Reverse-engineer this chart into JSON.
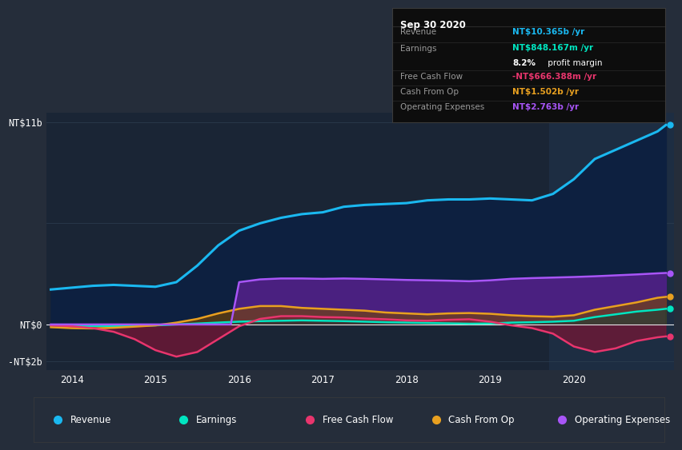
{
  "bg_color": "#252d3a",
  "plot_bg_color": "#1a2535",
  "grid_color": "#2e3f52",
  "highlight_bg": "#1e2c3f",
  "title": "Sep 30 2020",
  "ylabel_top": "NT$11b",
  "ylabel_zero": "NT$0",
  "ylabel_neg": "-NT$2b",
  "xlim": [
    2013.7,
    2021.2
  ],
  "ylim": [
    -2500000000.0,
    11500000000.0
  ],
  "info_box": {
    "date": "Sep 30 2020",
    "revenue_label": "Revenue",
    "revenue_value": "NT$10.365b /yr",
    "revenue_color": "#1ab8f0",
    "earnings_label": "Earnings",
    "earnings_value": "NT$848.167m /yr",
    "earnings_color": "#00e5c0",
    "profit_margin": "8.2%",
    "profit_label": " profit margin",
    "profit_color": "#ffffff",
    "fcf_label": "Free Cash Flow",
    "fcf_value": "-NT$666.388m /yr",
    "fcf_color": "#e8356d",
    "cashop_label": "Cash From Op",
    "cashop_value": "NT$1.502b /yr",
    "cashop_color": "#e8a020",
    "opex_label": "Operating Expenses",
    "opex_value": "NT$2.763b /yr",
    "opex_color": "#a855f7"
  },
  "revenue_x": [
    2013.75,
    2014.0,
    2014.25,
    2014.5,
    2014.75,
    2015.0,
    2015.25,
    2015.5,
    2015.75,
    2016.0,
    2016.25,
    2016.5,
    2016.75,
    2017.0,
    2017.25,
    2017.5,
    2017.75,
    2018.0,
    2018.25,
    2018.5,
    2018.75,
    2019.0,
    2019.25,
    2019.5,
    2019.75,
    2020.0,
    2020.25,
    2020.5,
    2020.75,
    2021.0,
    2021.1
  ],
  "revenue_y": [
    1900000000.0,
    2000000000.0,
    2100000000.0,
    2150000000.0,
    2100000000.0,
    2050000000.0,
    2300000000.0,
    3200000000.0,
    4300000000.0,
    5100000000.0,
    5500000000.0,
    5800000000.0,
    6000000000.0,
    6100000000.0,
    6400000000.0,
    6500000000.0,
    6550000000.0,
    6600000000.0,
    6750000000.0,
    6800000000.0,
    6800000000.0,
    6850000000.0,
    6800000000.0,
    6750000000.0,
    7100000000.0,
    7900000000.0,
    9000000000.0,
    9500000000.0,
    10000000000.0,
    10500000000.0,
    10850000000.0
  ],
  "revenue_color": "#1ab8f0",
  "revenue_lw": 2.2,
  "earnings_x": [
    2013.75,
    2014.0,
    2014.25,
    2014.5,
    2014.75,
    2015.0,
    2015.25,
    2015.5,
    2015.75,
    2016.0,
    2016.25,
    2016.5,
    2016.75,
    2017.0,
    2017.25,
    2017.5,
    2017.75,
    2018.0,
    2018.25,
    2018.5,
    2018.75,
    2019.0,
    2019.25,
    2019.5,
    2019.75,
    2020.0,
    2020.25,
    2020.5,
    2020.75,
    2021.0,
    2021.1
  ],
  "earnings_y": [
    -50000000.0,
    -80000000.0,
    -90000000.0,
    -100000000.0,
    -80000000.0,
    -50000000.0,
    0.0,
    50000000.0,
    100000000.0,
    150000000.0,
    180000000.0,
    200000000.0,
    220000000.0,
    200000000.0,
    180000000.0,
    150000000.0,
    120000000.0,
    100000000.0,
    80000000.0,
    60000000.0,
    40000000.0,
    50000000.0,
    100000000.0,
    120000000.0,
    150000000.0,
    200000000.0,
    400000000.0,
    550000000.0,
    700000000.0,
    800000000.0,
    850000000.0
  ],
  "earnings_color": "#00e5c0",
  "earnings_lw": 1.8,
  "fcf_x": [
    2013.75,
    2014.0,
    2014.25,
    2014.5,
    2014.75,
    2015.0,
    2015.25,
    2015.5,
    2015.75,
    2016.0,
    2016.25,
    2016.5,
    2016.75,
    2017.0,
    2017.25,
    2017.5,
    2017.75,
    2018.0,
    2018.25,
    2018.5,
    2018.75,
    2019.0,
    2019.25,
    2019.5,
    2019.75,
    2020.0,
    2020.25,
    2020.5,
    2020.75,
    2021.0,
    2021.1
  ],
  "fcf_y": [
    -50000000.0,
    -100000000.0,
    -200000000.0,
    -400000000.0,
    -800000000.0,
    -1400000000.0,
    -1750000000.0,
    -1500000000.0,
    -800000000.0,
    -100000000.0,
    300000000.0,
    450000000.0,
    450000000.0,
    400000000.0,
    380000000.0,
    320000000.0,
    280000000.0,
    220000000.0,
    200000000.0,
    250000000.0,
    280000000.0,
    150000000.0,
    -50000000.0,
    -200000000.0,
    -500000000.0,
    -1200000000.0,
    -1500000000.0,
    -1300000000.0,
    -900000000.0,
    -700000000.0,
    -650000000.0
  ],
  "fcf_color": "#e8356d",
  "fcf_lw": 1.8,
  "cashop_x": [
    2013.75,
    2014.0,
    2014.25,
    2014.5,
    2014.75,
    2015.0,
    2015.25,
    2015.5,
    2015.75,
    2016.0,
    2016.25,
    2016.5,
    2016.75,
    2017.0,
    2017.25,
    2017.5,
    2017.75,
    2018.0,
    2018.25,
    2018.5,
    2018.75,
    2019.0,
    2019.25,
    2019.5,
    2019.75,
    2020.0,
    2020.25,
    2020.5,
    2020.75,
    2021.0,
    2021.1
  ],
  "cashop_y": [
    -150000000.0,
    -200000000.0,
    -220000000.0,
    -180000000.0,
    -120000000.0,
    -50000000.0,
    100000000.0,
    300000000.0,
    600000000.0,
    850000000.0,
    1000000000.0,
    1000000000.0,
    900000000.0,
    850000000.0,
    800000000.0,
    750000000.0,
    650000000.0,
    600000000.0,
    550000000.0,
    600000000.0,
    620000000.0,
    580000000.0,
    500000000.0,
    450000000.0,
    420000000.0,
    500000000.0,
    800000000.0,
    1000000000.0,
    1200000000.0,
    1450000000.0,
    1500000000.0
  ],
  "cashop_color": "#e8a020",
  "cashop_lw": 1.8,
  "opex_x": [
    2013.75,
    2014.0,
    2014.25,
    2014.5,
    2014.75,
    2015.0,
    2015.25,
    2015.5,
    2015.75,
    2015.9,
    2016.0,
    2016.25,
    2016.5,
    2016.75,
    2017.0,
    2017.25,
    2017.5,
    2017.75,
    2018.0,
    2018.25,
    2018.5,
    2018.75,
    2019.0,
    2019.25,
    2019.5,
    2019.75,
    2020.0,
    2020.25,
    2020.5,
    2020.75,
    2021.0,
    2021.1
  ],
  "opex_y": [
    0.0,
    0.0,
    0.0,
    0.0,
    0.0,
    0.0,
    0.0,
    0.0,
    0.0,
    0.0,
    2300000000.0,
    2450000000.0,
    2500000000.0,
    2500000000.0,
    2480000000.0,
    2500000000.0,
    2480000000.0,
    2450000000.0,
    2420000000.0,
    2400000000.0,
    2380000000.0,
    2350000000.0,
    2400000000.0,
    2480000000.0,
    2520000000.0,
    2550000000.0,
    2580000000.0,
    2620000000.0,
    2670000000.0,
    2720000000.0,
    2780000000.0,
    2800000000.0
  ],
  "opex_color": "#a855f7",
  "opex_fill": "#4a2080",
  "opex_lw": 1.8,
  "highlight_x_start": 2019.7,
  "legend_items": [
    {
      "label": "Revenue",
      "color": "#1ab8f0"
    },
    {
      "label": "Earnings",
      "color": "#00e5c0"
    },
    {
      "label": "Free Cash Flow",
      "color": "#e8356d"
    },
    {
      "label": "Cash From Op",
      "color": "#e8a020"
    },
    {
      "label": "Operating Expenses",
      "color": "#a855f7"
    }
  ]
}
